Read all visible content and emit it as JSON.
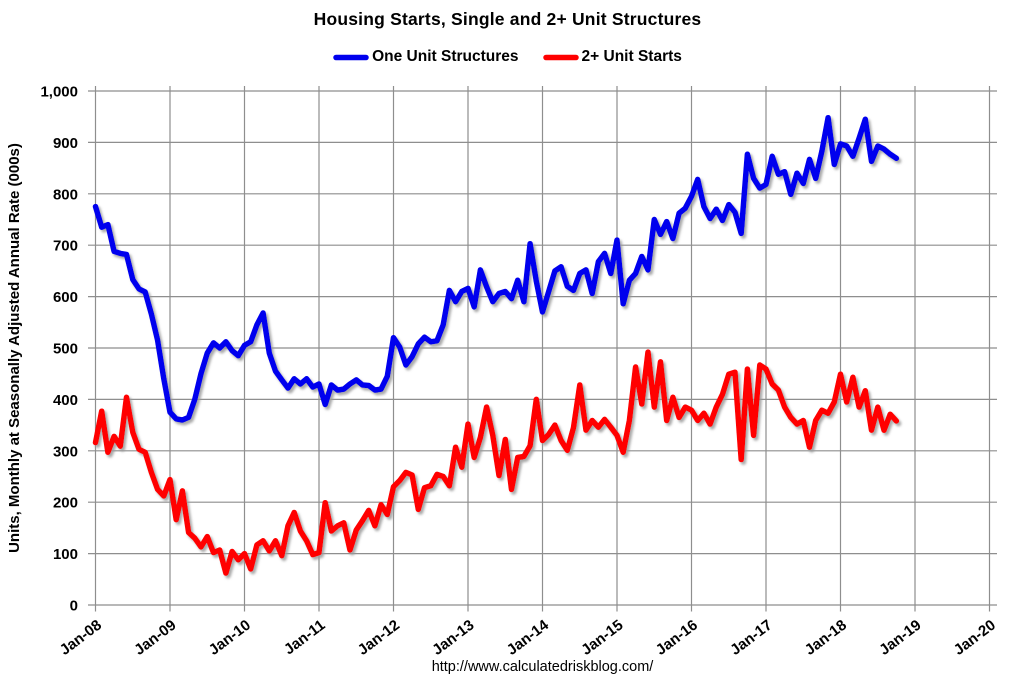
{
  "chart_data": {
    "type": "line",
    "title": "Housing Starts, Single and 2+ Unit Structures",
    "ylabel": "Units, Monthly at Seasonally Adjusted Annual Rate (000s)",
    "footer_url": "http://www.calculatedriskblog.com/",
    "grid": true,
    "legend_position": "top",
    "grid_color": "#8e8e8e",
    "x_axis": {
      "tick_labels": [
        "Jan-08",
        "Jan-09",
        "Jan-10",
        "Jan-11",
        "Jan-12",
        "Jan-13",
        "Jan-14",
        "Jan-15",
        "Jan-16",
        "Jan-17",
        "Jan-18",
        "Jan-19",
        "Jan-20"
      ],
      "months_per_tick": 12
    },
    "y_axis": {
      "min": 0,
      "max": 1000,
      "step": 100,
      "tick_labels": [
        "0",
        "100",
        "200",
        "300",
        "400",
        "500",
        "600",
        "700",
        "800",
        "900",
        "1,000"
      ]
    },
    "series": [
      {
        "name": "One Unit Structures",
        "color": "#0000EE",
        "start_at_tick": "Jan-08",
        "values": [
          775,
          735,
          740,
          688,
          684,
          682,
          633,
          615,
          609,
          566,
          515,
          440,
          375,
          362,
          360,
          365,
          400,
          450,
          490,
          510,
          500,
          512,
          495,
          485,
          505,
          512,
          545,
          568,
          490,
          455,
          438,
          422,
          440,
          430,
          440,
          424,
          430,
          390,
          428,
          418,
          420,
          430,
          438,
          428,
          427,
          418,
          420,
          445,
          520,
          502,
          467,
          483,
          508,
          521,
          512,
          514,
          545,
          612,
          590,
          610,
          616,
          580,
          652,
          619,
          590,
          606,
          610,
          596,
          632,
          590,
          703,
          630,
          570,
          610,
          650,
          658,
          620,
          612,
          645,
          652,
          606,
          668,
          684,
          645,
          710,
          586,
          632,
          645,
          678,
          652,
          750,
          721,
          746,
          713,
          762,
          772,
          795,
          828,
          775,
          752,
          770,
          748,
          779,
          764,
          723,
          877,
          830,
          811,
          818,
          873,
          838,
          843,
          799,
          840,
          820,
          867,
          830,
          883,
          948,
          857,
          897,
          893,
          873,
          908,
          945,
          863,
          893,
          887,
          877,
          869
        ]
      },
      {
        "name": "2+ Unit Starts",
        "color": "#FF0000",
        "start_at_tick": "Jan-08",
        "values": [
          316,
          377,
          297,
          328,
          309,
          404,
          336,
          303,
          297,
          258,
          225,
          212,
          244,
          166,
          222,
          141,
          130,
          113,
          133,
          102,
          107,
          62,
          104,
          88,
          100,
          70,
          117,
          125,
          105,
          125,
          96,
          154,
          180,
          144,
          125,
          98,
          102,
          199,
          144,
          154,
          160,
          107,
          146,
          164,
          184,
          154,
          195,
          176,
          230,
          242,
          258,
          253,
          186,
          228,
          232,
          254,
          250,
          232,
          307,
          268,
          352,
          287,
          326,
          385,
          330,
          252,
          322,
          225,
          287,
          289,
          310,
          400,
          320,
          332,
          350,
          320,
          301,
          345,
          428,
          340,
          359,
          346,
          361,
          346,
          330,
          297,
          359,
          463,
          391,
          492,
          385,
          473,
          359,
          404,
          365,
          385,
          379,
          359,
          373,
          352,
          385,
          410,
          449,
          453,
          283,
          459,
          330,
          467,
          459,
          430,
          418,
          385,
          365,
          352,
          359,
          307,
          359,
          379,
          373,
          395,
          449,
          395,
          443,
          385,
          417,
          340,
          385,
          340,
          371,
          358
        ]
      }
    ]
  }
}
